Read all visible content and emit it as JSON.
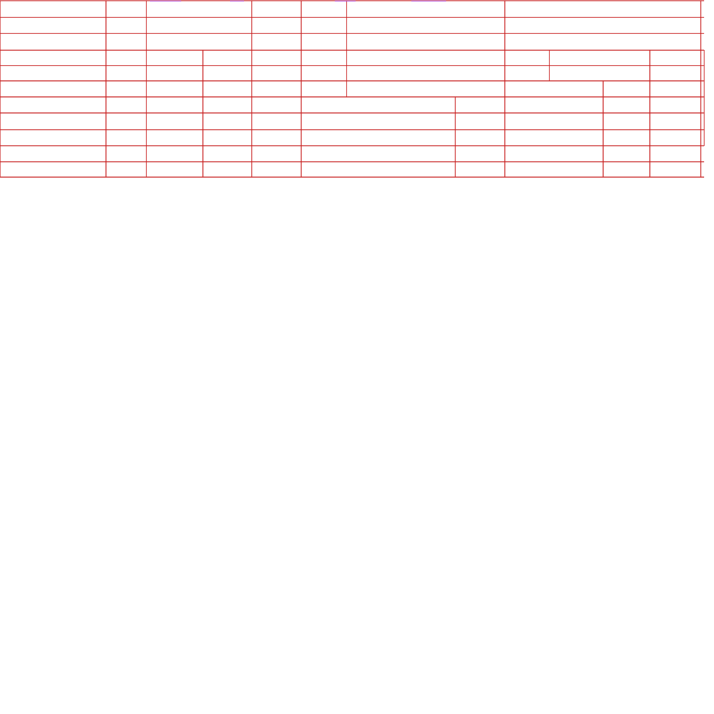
{
  "grid": {
    "line_color": "#c81e1e",
    "accent_marks_color": "#a855f7",
    "rows": 11,
    "columns": 13,
    "cells": []
  }
}
